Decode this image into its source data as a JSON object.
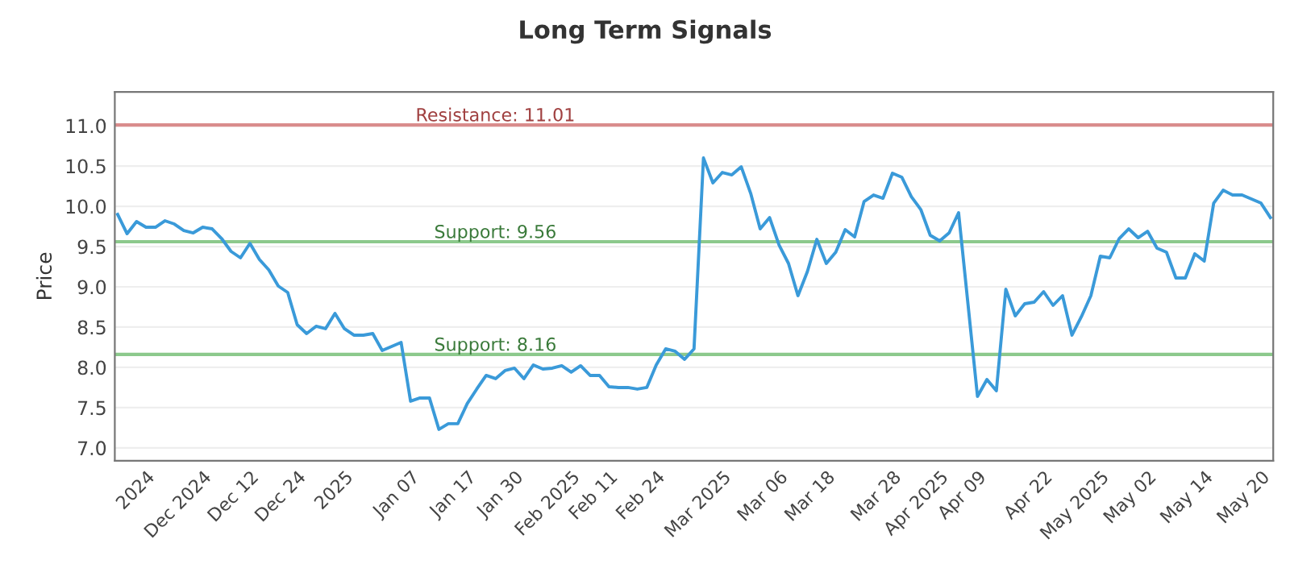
{
  "chart_data": {
    "type": "line",
    "title": "Long Term Signals",
    "ylabel": "Price",
    "categories": [
      null,
      null,
      null,
      "2024",
      null,
      null,
      null,
      null,
      null,
      "Dec 2024",
      null,
      null,
      null,
      null,
      "Dec 12",
      null,
      null,
      null,
      null,
      "Dec 24",
      null,
      null,
      null,
      null,
      "2025",
      null,
      null,
      null,
      null,
      null,
      null,
      "Jan 07",
      null,
      null,
      null,
      null,
      null,
      "Jan 17",
      null,
      null,
      null,
      null,
      "Jan 30",
      null,
      null,
      null,
      null,
      null,
      "Feb 2025",
      null,
      null,
      null,
      "Feb 11",
      null,
      null,
      null,
      null,
      "Feb 24",
      null,
      null,
      null,
      null,
      null,
      null,
      "Mar 2025",
      null,
      null,
      null,
      null,
      null,
      "Mar 06",
      null,
      null,
      null,
      null,
      "Mar 18",
      null,
      null,
      null,
      null,
      null,
      null,
      "Mar 28",
      null,
      null,
      null,
      null,
      "Apr 2025",
      null,
      null,
      null,
      "Apr 09",
      null,
      null,
      null,
      null,
      null,
      null,
      "Apr 22",
      null,
      null,
      null,
      null,
      null,
      "May 2025",
      null,
      null,
      null,
      null,
      "May 02",
      null,
      null,
      null,
      null,
      null,
      "May 14",
      null,
      null,
      null,
      null,
      null,
      "May 20",
      null
    ],
    "series": [
      {
        "color": "#3a9ad9",
        "values": [
          9.9,
          9.66,
          9.81,
          9.74,
          9.74,
          9.82,
          9.78,
          9.7,
          9.67,
          9.74,
          9.72,
          9.6,
          9.44,
          9.36,
          9.54,
          9.34,
          9.21,
          9.01,
          8.93,
          8.53,
          8.42,
          8.51,
          8.48,
          8.67,
          8.48,
          8.4,
          8.4,
          8.42,
          8.21,
          8.26,
          8.31,
          7.58,
          7.62,
          7.62,
          7.23,
          7.3,
          7.3,
          7.55,
          7.73,
          7.9,
          7.86,
          7.96,
          7.99,
          7.86,
          8.03,
          7.98,
          7.99,
          8.02,
          7.94,
          8.02,
          7.9,
          7.9,
          7.76,
          7.75,
          7.75,
          7.73,
          7.75,
          8.03,
          8.23,
          8.2,
          8.1,
          8.23,
          10.6,
          10.29,
          10.42,
          10.39,
          10.49,
          10.16,
          9.72,
          9.86,
          9.52,
          9.29,
          8.89,
          9.19,
          9.59,
          9.29,
          9.43,
          9.71,
          9.62,
          10.06,
          10.14,
          10.1,
          10.41,
          10.36,
          10.12,
          9.96,
          9.64,
          9.57,
          9.67,
          9.92,
          8.78,
          7.64,
          7.85,
          7.71,
          8.97,
          8.64,
          8.79,
          8.81,
          8.94,
          8.77,
          8.89,
          8.4,
          8.63,
          8.89,
          9.38,
          9.36,
          9.6,
          9.72,
          9.61,
          9.69,
          9.48,
          9.43,
          9.11,
          9.11,
          9.41,
          9.32,
          10.04,
          10.2,
          10.14,
          10.14,
          10.09,
          10.04,
          9.86
        ]
      }
    ],
    "ylim": [
      6.84,
      11.42
    ],
    "yticks": [
      {
        "value": 7,
        "label": "7.0"
      },
      {
        "value": 7.5,
        "label": "7.5"
      },
      {
        "value": 8,
        "label": "8.0"
      },
      {
        "value": 8.5,
        "label": "8.5"
      },
      {
        "value": 9,
        "label": "9.0"
      },
      {
        "value": 9.5,
        "label": "9.5"
      },
      {
        "value": 10,
        "label": "10.0"
      },
      {
        "value": 10.5,
        "label": "10.5"
      },
      {
        "value": 11,
        "label": "11.0"
      }
    ],
    "grid": "y",
    "marker": "none",
    "line_style": "solid",
    "ref_lines": [
      {
        "axis": "y",
        "value": 11.01,
        "label": "Resistance: 11.01",
        "color": "#d98c8c"
      },
      {
        "axis": "y",
        "value": 9.56,
        "label": "Support: 9.56",
        "color": "#8cc98c"
      },
      {
        "axis": "y",
        "value": 8.16,
        "label": "Support: 8.16",
        "color": "#8cc98c"
      }
    ]
  }
}
